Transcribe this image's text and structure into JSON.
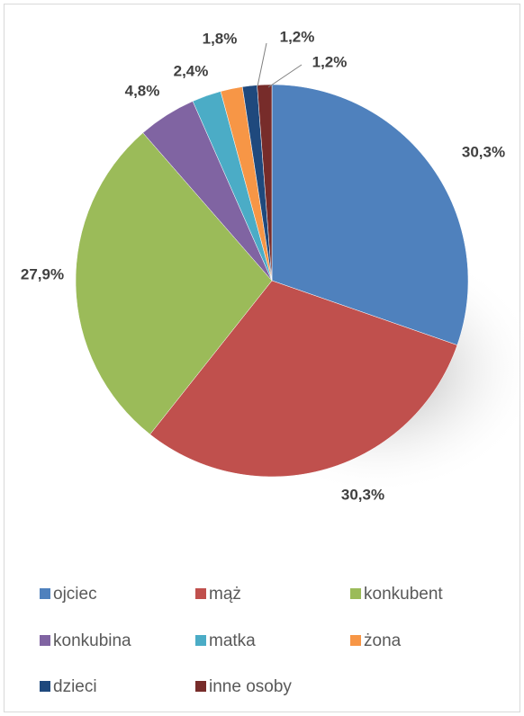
{
  "chart_data": {
    "type": "pie",
    "categories": [
      "ojciec",
      "mąż",
      "konkubent",
      "konkubina",
      "matka",
      "żona",
      "dzieci",
      "inne osoby"
    ],
    "values": [
      30.3,
      30.3,
      27.9,
      4.8,
      2.4,
      1.8,
      1.2,
      1.2
    ],
    "value_labels": [
      "30,3%",
      "30,3%",
      "27,9%",
      "4,8%",
      "2,4%",
      "1,8%",
      "1,2%",
      "1,2%"
    ],
    "colors": [
      "#4f81bd",
      "#c0504d",
      "#9bbb59",
      "#8064a2",
      "#4bacc6",
      "#f79646",
      "#1f497d",
      "#772c2a"
    ],
    "legend": "bottom"
  }
}
